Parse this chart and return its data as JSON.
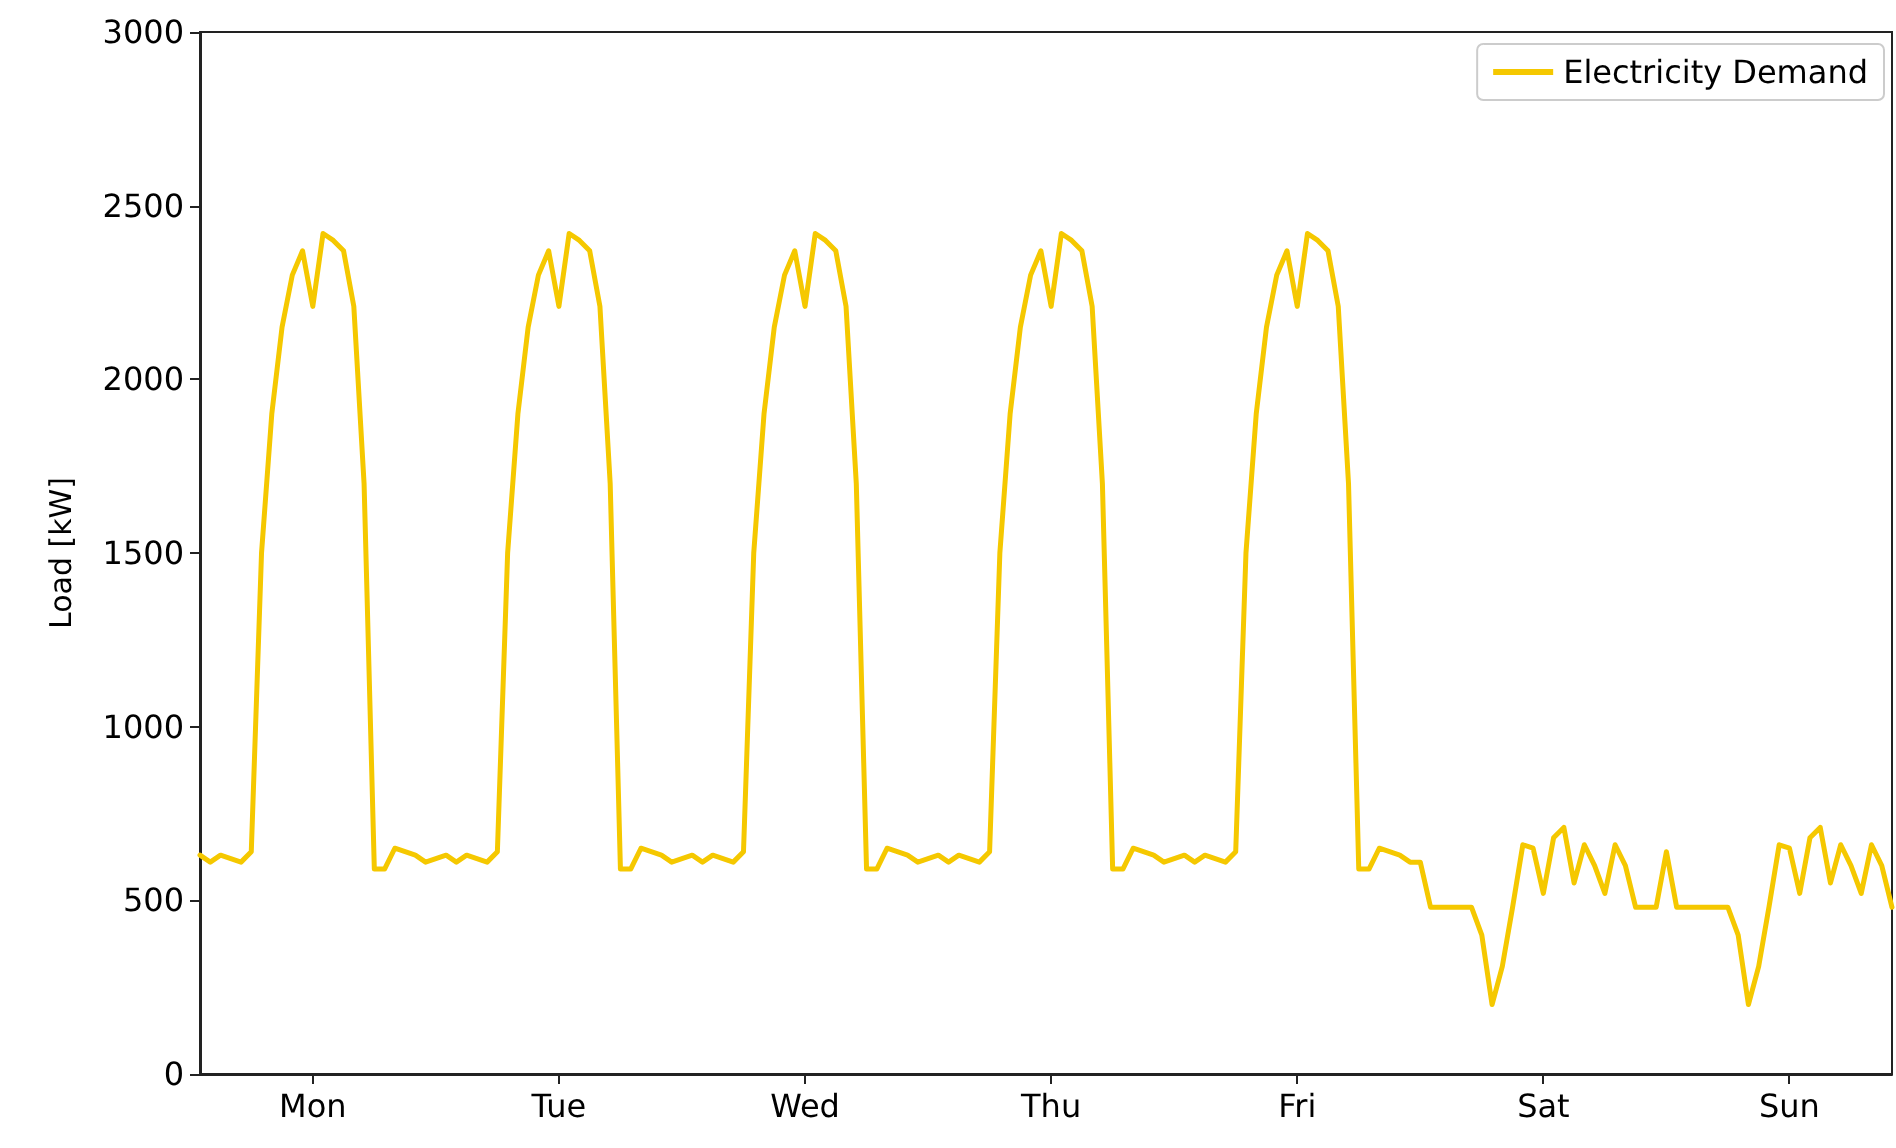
{
  "chart_data": {
    "type": "line",
    "ylabel": "Load [kW]",
    "categories": [
      null,
      null,
      null,
      null,
      null,
      null,
      null,
      null,
      null,
      null,
      null,
      "Mon",
      null,
      null,
      null,
      null,
      null,
      null,
      null,
      null,
      null,
      null,
      null,
      null,
      null,
      null,
      null,
      null,
      null,
      null,
      null,
      null,
      null,
      null,
      null,
      "Tue",
      null,
      null,
      null,
      null,
      null,
      null,
      null,
      null,
      null,
      null,
      null,
      null,
      null,
      null,
      null,
      null,
      null,
      null,
      null,
      null,
      null,
      null,
      null,
      "Wed",
      null,
      null,
      null,
      null,
      null,
      null,
      null,
      null,
      null,
      null,
      null,
      null,
      null,
      null,
      null,
      null,
      null,
      null,
      null,
      null,
      null,
      null,
      null,
      "Thu",
      null,
      null,
      null,
      null,
      null,
      null,
      null,
      null,
      null,
      null,
      null,
      null,
      null,
      null,
      null,
      null,
      null,
      null,
      null,
      null,
      null,
      null,
      null,
      "Fri",
      null,
      null,
      null,
      null,
      null,
      null,
      null,
      null,
      null,
      null,
      null,
      null,
      null,
      null,
      null,
      null,
      null,
      null,
      null,
      null,
      null,
      null,
      null,
      "Sat",
      null,
      null,
      null,
      null,
      null,
      null,
      null,
      null,
      null,
      null,
      null,
      null,
      null,
      null,
      null,
      null,
      null,
      null,
      null,
      null,
      null,
      null,
      null,
      "Sun",
      null,
      null,
      null,
      null,
      null,
      null,
      null,
      null,
      null,
      null
    ],
    "series": [
      {
        "name": "Electricity Demand",
        "color": "#f5c800",
        "values": [
          630,
          610,
          630,
          620,
          610,
          640,
          1500,
          1900,
          2150,
          2300,
          2370,
          2210,
          2420,
          2400,
          2370,
          2210,
          1700,
          590,
          590,
          650,
          640,
          630,
          610,
          620,
          630,
          610,
          630,
          620,
          610,
          640,
          1500,
          1900,
          2150,
          2300,
          2370,
          2210,
          2420,
          2400,
          2370,
          2210,
          1700,
          590,
          590,
          650,
          640,
          630,
          610,
          620,
          630,
          610,
          630,
          620,
          610,
          640,
          1500,
          1900,
          2150,
          2300,
          2370,
          2210,
          2420,
          2400,
          2370,
          2210,
          1700,
          590,
          590,
          650,
          640,
          630,
          610,
          620,
          630,
          610,
          630,
          620,
          610,
          640,
          1500,
          1900,
          2150,
          2300,
          2370,
          2210,
          2420,
          2400,
          2370,
          2210,
          1700,
          590,
          590,
          650,
          640,
          630,
          610,
          620,
          630,
          610,
          630,
          620,
          610,
          640,
          1500,
          1900,
          2150,
          2300,
          2370,
          2210,
          2420,
          2400,
          2370,
          2210,
          1700,
          590,
          590,
          650,
          640,
          630,
          610,
          610,
          480,
          480,
          480,
          480,
          480,
          400,
          200,
          310,
          480,
          660,
          650,
          520,
          680,
          710,
          550,
          660,
          600,
          520,
          660,
          600,
          480,
          480,
          480,
          640,
          480,
          480,
          480,
          480,
          480,
          480,
          400,
          200,
          310,
          480,
          660,
          650,
          520,
          680,
          710,
          550,
          660,
          600,
          520,
          660,
          600,
          480
        ]
      }
    ],
    "ylim": [
      0,
      3000
    ],
    "yticks": [
      0,
      500,
      1000,
      1500,
      2000,
      2500,
      3000
    ],
    "legend": "top right",
    "marker": "none",
    "line_style": "solid"
  }
}
